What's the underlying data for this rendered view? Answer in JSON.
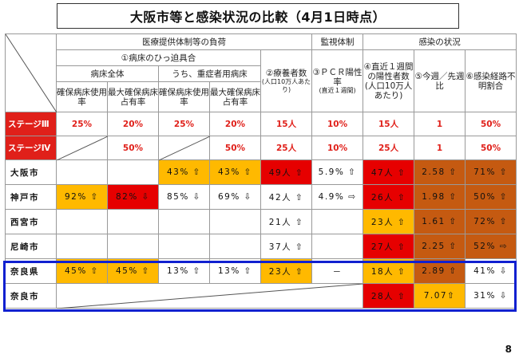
{
  "title": "大阪市等と感染状況の比較（4月1日時点）",
  "header": {
    "medical": "医療提供体制等の負荷",
    "surveillance": "監視体制",
    "infection": "感染の状況",
    "bed_tightness": "①病床のひっ迫具合",
    "recuperating": "②療養者数",
    "recuperating_sub": "(人口10万人あたり)",
    "pcr": "③ＰＣＲ陽性率",
    "pcr_sub": "(直近１週間)",
    "recent_week": "④直近１週間の陽性者数(人口10万人あたり)",
    "week_ratio": "⑤今週／先週比",
    "unknown_route": "⑥感染経路不明割合",
    "all_beds": "病床全体",
    "severe_beds": "うち、重症者用病床",
    "col_use_rate": "確保病床使用率",
    "col_occupancy": "最大確保病床占有率",
    "col_use_rate2": "確保病床使用率",
    "col_occupancy2": "最大確保病床占有率"
  },
  "stages": [
    {
      "label": "ステージⅢ",
      "values": [
        "25%",
        "20%",
        "25%",
        "20%",
        "15人",
        "10%",
        "15人",
        "1",
        "50%"
      ]
    },
    {
      "label": "ステージⅣ",
      "values": [
        "",
        "50%",
        "",
        "50%",
        "25人",
        "10%",
        "25人",
        "1",
        "50%"
      ]
    }
  ],
  "rows": [
    {
      "name": "大阪市",
      "values": [
        "",
        "",
        "43% ⇧",
        "43% ⇧",
        "49人 ⇧",
        "5.9% ⇧",
        "47人 ⇧",
        "2.58 ⇧",
        "71% ⇧"
      ]
    },
    {
      "name": "神戸市",
      "values": [
        "92% ⇧",
        "82% ⇩",
        "85% ⇩",
        "69% ⇩",
        "42人 ⇧",
        "4.9% ⇨",
        "26人 ⇧",
        "1.98 ⇧",
        "50% ⇧"
      ]
    },
    {
      "name": "西宮市",
      "values": [
        "",
        "",
        "",
        "",
        "21人 ⇧",
        "",
        "23人 ⇧",
        "1.61 ⇧",
        "72% ⇧"
      ]
    },
    {
      "name": "尼崎市",
      "values": [
        "",
        "",
        "",
        "",
        "37人 ⇧",
        "",
        "27人 ⇧",
        "2.25 ⇧",
        "52% ⇨"
      ]
    },
    {
      "name": "奈良県",
      "values": [
        "45% ⇧",
        "45% ⇧",
        "13% ⇧",
        "13% ⇧",
        "23人 ⇧",
        "－",
        "18人 ⇧",
        "2.89 ⇧",
        "41% ⇩"
      ]
    },
    {
      "name": "奈良市",
      "values": [
        "28人 ⇧",
        "7.07⇧",
        "31% ⇩"
      ]
    }
  ],
  "page_number": "8",
  "colors": {
    "yellow": "#ffb900",
    "red": "#e60000",
    "brown": "#c55a11",
    "stage_red": "#e0201a",
    "highlight_blue": "#1020d0"
  }
}
